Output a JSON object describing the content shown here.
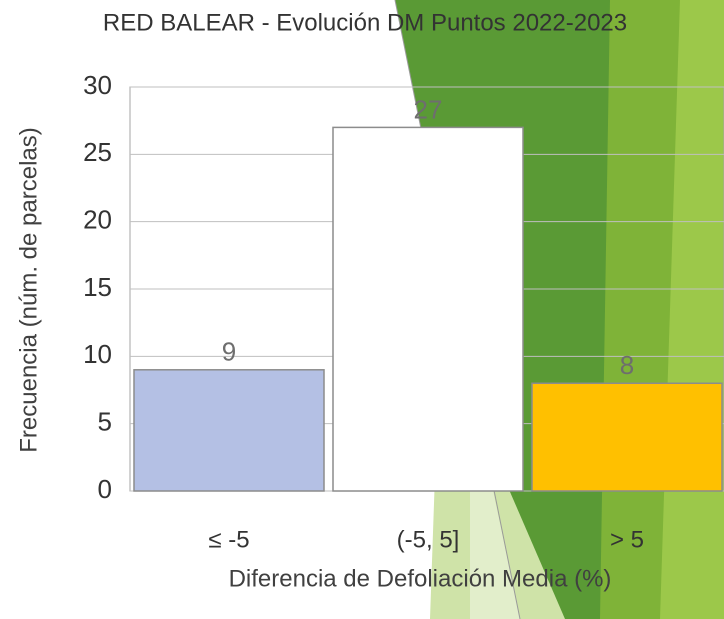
{
  "chart_data": {
    "type": "bar",
    "title": "RED BALEAR - Evolución DM Puntos 2022-2023",
    "x_label": "Diferencia de Defoliación Media (%)",
    "y_label": "Frecuencia (núm. de parcelas)",
    "categories": [
      "≤ -5",
      "(-5, 5]",
      "> 5"
    ],
    "values": [
      9,
      27,
      8
    ],
    "colors": [
      "#b4c0e4",
      "#ffffff",
      "#ffc000"
    ],
    "ylim": [
      0,
      30
    ],
    "yticks": [
      0,
      5,
      10,
      15,
      20,
      25,
      30
    ],
    "grid": true
  }
}
